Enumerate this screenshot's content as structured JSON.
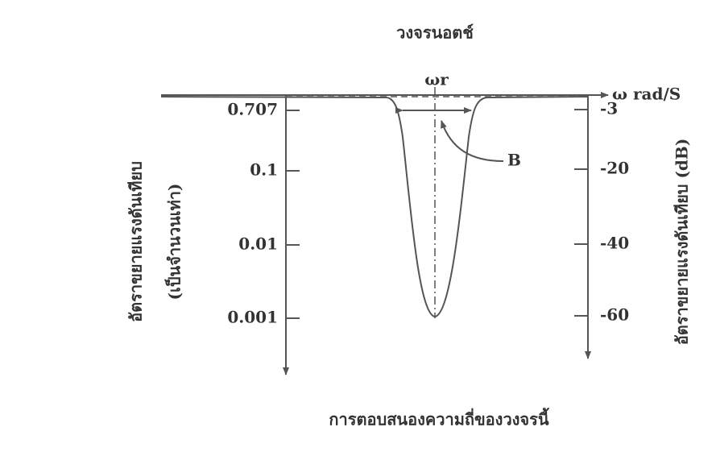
{
  "title": "วงจรนอตช์",
  "x_axis": {
    "label": "การตอบสนองความถี่ของวงจรนี้",
    "end_label": "ω rad/S",
    "center_label": "ωr"
  },
  "left_axis": {
    "label_lines": [
      "อัตราขยายแรงดันเทียบ",
      "(เป็นจำนวนเท่า)"
    ],
    "ticks": [
      "0.707",
      "0.1",
      "0.01",
      "0.001"
    ]
  },
  "right_axis": {
    "label": "อัตราขยายแรงดันเทียบ (dB)",
    "ticks": [
      "-3",
      "-20",
      "-40",
      "-60"
    ]
  },
  "annotation": "B"
}
